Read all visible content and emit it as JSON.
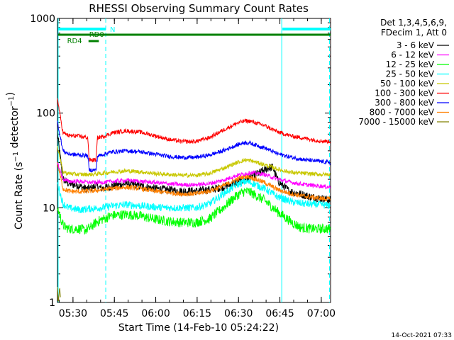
{
  "chart_data": {
    "type": "line",
    "title": "RHESSI Observing Summary Count Rates",
    "xlabel": "Start Time (14-Feb-10 05:24:22)",
    "ylabel": "Count Rate (s⁻¹ detector⁻¹)",
    "yscale": "log",
    "ylim": [
      1,
      1000
    ],
    "xlim_minutes": [
      0,
      99
    ],
    "x_ticks": [
      {
        "label": "05:30",
        "minute": 5.63
      },
      {
        "label": "05:45",
        "minute": 20.63
      },
      {
        "label": "06:00",
        "minute": 35.63
      },
      {
        "label": "06:15",
        "minute": 50.63
      },
      {
        "label": "06:30",
        "minute": 65.63
      },
      {
        "label": "06:45",
        "minute": 80.63
      },
      {
        "label": "07:00",
        "minute": 95.63
      }
    ],
    "y_ticks": [
      {
        "label": "1",
        "value": 1
      },
      {
        "label": "10",
        "value": 10
      },
      {
        "label": "100",
        "value": 100
      },
      {
        "label": "1000",
        "value": 1000
      }
    ],
    "legend_header": [
      "Det 1,3,4,5,6,9,",
      "FDecim 1, Att 0"
    ],
    "series": [
      {
        "name": "3 - 6 keV",
        "color": "#000000",
        "points": [
          [
            0,
            60
          ],
          [
            2,
            20
          ],
          [
            4,
            18
          ],
          [
            8,
            17
          ],
          [
            10,
            16
          ],
          [
            12,
            16
          ],
          [
            14,
            17
          ],
          [
            16,
            16
          ],
          [
            20,
            17
          ],
          [
            25,
            18
          ],
          [
            30,
            17
          ],
          [
            35,
            16
          ],
          [
            40,
            15.5
          ],
          [
            45,
            15
          ],
          [
            50,
            15
          ],
          [
            55,
            15.5
          ],
          [
            60,
            16.5
          ],
          [
            65,
            18.5
          ],
          [
            70,
            21
          ],
          [
            74,
            24
          ],
          [
            76,
            26
          ],
          [
            78,
            27
          ],
          [
            80,
            19
          ],
          [
            84,
            15
          ],
          [
            88,
            14
          ],
          [
            92,
            13
          ],
          [
            96,
            12.5
          ],
          [
            99,
            12
          ]
        ]
      },
      {
        "name": "6 - 12 keV",
        "color": "#ff00ff",
        "points": [
          [
            0,
            30
          ],
          [
            2,
            20
          ],
          [
            4,
            19
          ],
          [
            8,
            19
          ],
          [
            12,
            18.5
          ],
          [
            16,
            18.5
          ],
          [
            20,
            19
          ],
          [
            25,
            19.5
          ],
          [
            30,
            19
          ],
          [
            35,
            18.5
          ],
          [
            40,
            18
          ],
          [
            45,
            17.5
          ],
          [
            50,
            17.5
          ],
          [
            55,
            18
          ],
          [
            60,
            19.5
          ],
          [
            65,
            22
          ],
          [
            70,
            23.5
          ],
          [
            75,
            22.5
          ],
          [
            80,
            20
          ],
          [
            85,
            18.5
          ],
          [
            90,
            17.5
          ],
          [
            95,
            17
          ],
          [
            99,
            16.5
          ]
        ]
      },
      {
        "name": "12 - 25 keV",
        "color": "#00ff00",
        "points": [
          [
            0,
            10
          ],
          [
            2,
            6.5
          ],
          [
            4,
            6
          ],
          [
            6,
            6
          ],
          [
            8,
            6
          ],
          [
            10,
            5.8
          ],
          [
            12,
            6.2
          ],
          [
            14,
            7
          ],
          [
            16,
            7.5
          ],
          [
            20,
            8.3
          ],
          [
            25,
            8.5
          ],
          [
            30,
            8.2
          ],
          [
            35,
            7.6
          ],
          [
            40,
            7.2
          ],
          [
            45,
            7
          ],
          [
            50,
            7
          ],
          [
            55,
            7.6
          ],
          [
            60,
            10
          ],
          [
            65,
            13.5
          ],
          [
            68,
            15
          ],
          [
            70,
            14.5
          ],
          [
            75,
            12
          ],
          [
            80,
            9
          ],
          [
            85,
            7
          ],
          [
            88,
            6.2
          ],
          [
            92,
            6
          ],
          [
            96,
            6
          ],
          [
            99,
            6
          ]
        ]
      },
      {
        "name": "25 - 50 keV",
        "color": "#00ffff",
        "points": [
          [
            0,
            18
          ],
          [
            2,
            11
          ],
          [
            4,
            10
          ],
          [
            8,
            9.5
          ],
          [
            12,
            9.8
          ],
          [
            16,
            10
          ],
          [
            20,
            10.5
          ],
          [
            25,
            10.8
          ],
          [
            30,
            10.5
          ],
          [
            35,
            10.2
          ],
          [
            40,
            10
          ],
          [
            45,
            10
          ],
          [
            50,
            10
          ],
          [
            55,
            11
          ],
          [
            60,
            14
          ],
          [
            65,
            17.5
          ],
          [
            68,
            19
          ],
          [
            70,
            18.5
          ],
          [
            75,
            16
          ],
          [
            80,
            13
          ],
          [
            85,
            11.5
          ],
          [
            90,
            11
          ],
          [
            95,
            10.8
          ],
          [
            99,
            10.5
          ]
        ]
      },
      {
        "name": "50 - 100 keV",
        "color": "#c8c800",
        "points": [
          [
            0,
            45
          ],
          [
            2,
            24
          ],
          [
            4,
            23
          ],
          [
            8,
            22.5
          ],
          [
            12,
            22.5
          ],
          [
            16,
            23
          ],
          [
            20,
            24
          ],
          [
            25,
            24.5
          ],
          [
            30,
            24
          ],
          [
            35,
            23
          ],
          [
            40,
            22.5
          ],
          [
            45,
            22
          ],
          [
            50,
            22
          ],
          [
            55,
            23
          ],
          [
            60,
            26
          ],
          [
            65,
            30
          ],
          [
            68,
            32
          ],
          [
            70,
            31.5
          ],
          [
            75,
            28.5
          ],
          [
            80,
            25.5
          ],
          [
            85,
            23.5
          ],
          [
            90,
            23
          ],
          [
            95,
            22.5
          ],
          [
            99,
            22.5
          ]
        ]
      },
      {
        "name": "100 - 300 keV",
        "color": "#ff0000",
        "points": [
          [
            0,
            140
          ],
          [
            2,
            62
          ],
          [
            4,
            58
          ],
          [
            8,
            57
          ],
          [
            11,
            55
          ],
          [
            11.5,
            32
          ],
          [
            14,
            32
          ],
          [
            14.5,
            55
          ],
          [
            17,
            57
          ],
          [
            20,
            62
          ],
          [
            25,
            65
          ],
          [
            30,
            63
          ],
          [
            35,
            58
          ],
          [
            40,
            53
          ],
          [
            45,
            50
          ],
          [
            50,
            50
          ],
          [
            55,
            55
          ],
          [
            60,
            66
          ],
          [
            65,
            78
          ],
          [
            68,
            83
          ],
          [
            70,
            82
          ],
          [
            75,
            74
          ],
          [
            80,
            63
          ],
          [
            85,
            57
          ],
          [
            90,
            54
          ],
          [
            95,
            51
          ],
          [
            99,
            50
          ]
        ]
      },
      {
        "name": "300 - 800 keV",
        "color": "#0000ff",
        "points": [
          [
            0,
            80
          ],
          [
            2,
            40
          ],
          [
            4,
            37
          ],
          [
            8,
            36
          ],
          [
            11,
            35.5
          ],
          [
            11.5,
            25
          ],
          [
            14,
            25
          ],
          [
            14.5,
            35
          ],
          [
            17,
            37
          ],
          [
            20,
            39
          ],
          [
            25,
            40
          ],
          [
            30,
            39
          ],
          [
            35,
            37
          ],
          [
            40,
            35
          ],
          [
            45,
            34
          ],
          [
            50,
            34
          ],
          [
            55,
            36
          ],
          [
            60,
            40
          ],
          [
            65,
            46
          ],
          [
            68,
            49
          ],
          [
            70,
            48
          ],
          [
            75,
            43
          ],
          [
            80,
            37
          ],
          [
            85,
            34
          ],
          [
            90,
            32
          ],
          [
            95,
            31
          ],
          [
            99,
            30
          ]
        ]
      },
      {
        "name": "800 - 7000 keV",
        "color": "#ff8000",
        "points": [
          [
            0,
            30
          ],
          [
            2,
            16
          ],
          [
            4,
            15
          ],
          [
            8,
            14.8
          ],
          [
            12,
            15
          ],
          [
            16,
            15.5
          ],
          [
            20,
            16
          ],
          [
            25,
            16.5
          ],
          [
            30,
            16
          ],
          [
            35,
            15
          ],
          [
            40,
            14.5
          ],
          [
            45,
            14
          ],
          [
            50,
            14
          ],
          [
            55,
            15
          ],
          [
            60,
            17
          ],
          [
            65,
            20
          ],
          [
            68,
            21.5
          ],
          [
            70,
            21
          ],
          [
            75,
            18.5
          ],
          [
            80,
            15.5
          ],
          [
            85,
            14
          ],
          [
            90,
            13.2
          ],
          [
            95,
            12.6
          ],
          [
            99,
            12.3
          ]
        ]
      },
      {
        "name": "7000 - 15000 keV",
        "color": "#808000",
        "points": [
          [
            0,
            1.5
          ],
          [
            0.3,
            1
          ],
          [
            0.8,
            1.4
          ],
          [
            1.2,
            1
          ]
        ]
      }
    ],
    "overlays": [
      {
        "label": "N",
        "color": "#00ffff",
        "segments": [
          [
            0,
            17.5
          ],
          [
            81.3,
            99
          ]
        ]
      },
      {
        "label": "RD0",
        "color": "#008000",
        "segments": [
          [
            0,
            99
          ]
        ]
      },
      {
        "label": "RD4",
        "color": "#008000",
        "segments": [
          [
            11,
            15
          ]
        ]
      }
    ],
    "vertical_markers": [
      {
        "minute": 0,
        "style": "solid"
      },
      {
        "minute": 17.5,
        "style": "dashed"
      },
      {
        "minute": 81.3,
        "style": "solid"
      },
      {
        "minute": 98.6,
        "style": "dashed"
      }
    ]
  },
  "footer_timestamp": "14-Oct-2021 07:33"
}
